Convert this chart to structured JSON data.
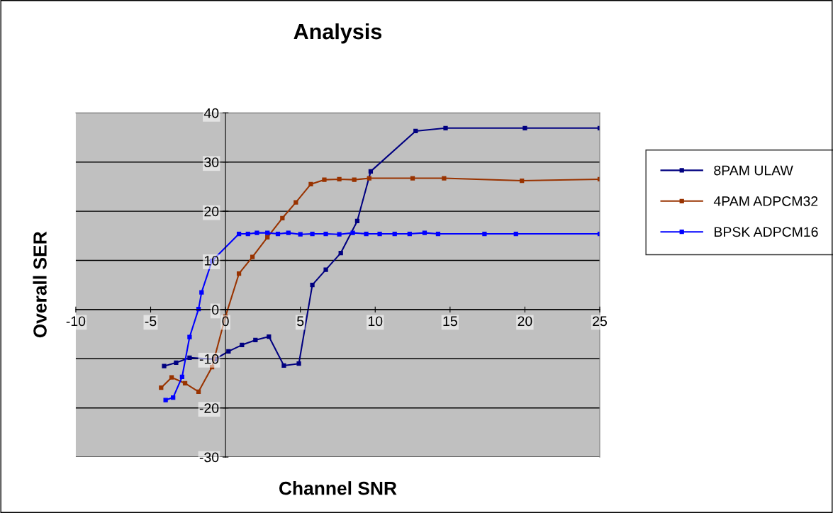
{
  "chart_data": {
    "type": "line",
    "title": "Analysis",
    "xlabel": "Channel SNR",
    "ylabel": "Overall SER",
    "xlim": [
      -10,
      25
    ],
    "xticks": [
      -10,
      -5,
      0,
      5,
      10,
      15,
      20,
      25
    ],
    "ylim": [
      -30,
      40
    ],
    "yticks": [
      -30,
      -20,
      -10,
      0,
      10,
      20,
      30,
      40
    ],
    "grid": "y",
    "legend": "right",
    "marker": "square",
    "line_style": "solid",
    "series": [
      {
        "name": "8PAM ULAW",
        "color": "#000080",
        "x": [
          -4.1,
          -3.3,
          -2.4,
          -0.7,
          0.2,
          1.1,
          2.0,
          2.9,
          3.9,
          4.9,
          5.8,
          6.7,
          7.7,
          8.8,
          9.7,
          12.7,
          14.7,
          20,
          25
        ],
        "values": [
          -11.5,
          -10.8,
          -9.8,
          -10.1,
          -8.5,
          -7.2,
          -6.2,
          -5.5,
          -11.4,
          -11,
          5,
          8.1,
          11.5,
          18,
          28.1,
          36.3,
          36.9,
          36.9,
          36.9
        ]
      },
      {
        "name": "4PAM ADPCM32",
        "color": "#993300",
        "x": [
          -4.3,
          -3.6,
          -2.7,
          -1.8,
          -0.9,
          0,
          0.9,
          1.8,
          2.8,
          3.8,
          4.7,
          5.7,
          6.6,
          7.6,
          8.6,
          9.6,
          12.5,
          14.6,
          19.8,
          25
        ],
        "values": [
          -15.9,
          -13.8,
          -15,
          -16.7,
          -11.7,
          -1.4,
          7.3,
          10.7,
          14.7,
          18.6,
          21.8,
          25.5,
          26.4,
          26.5,
          26.4,
          26.7,
          26.7,
          26.7,
          26.2,
          26.5
        ]
      },
      {
        "name": "BPSK ADPCM16",
        "color": "#0000ff",
        "x": [
          -4.0,
          -3.5,
          -2.9,
          -2.4,
          -1.8,
          -1.6,
          -0.9,
          0.9,
          1.5,
          2.1,
          2.8,
          3.5,
          4.2,
          5.0,
          5.8,
          6.7,
          7.6,
          8.5,
          9.4,
          10.3,
          11.3,
          12.3,
          13.3,
          14.2,
          17.3,
          19.4,
          25
        ],
        "values": [
          -18.4,
          -17.9,
          -13.7,
          -5.6,
          0.1,
          3.5,
          9.9,
          15.4,
          15.4,
          15.6,
          15.6,
          15.4,
          15.6,
          15.3,
          15.4,
          15.4,
          15.3,
          15.6,
          15.4,
          15.4,
          15.4,
          15.4,
          15.6,
          15.4,
          15.4,
          15.4,
          15.4
        ]
      }
    ]
  }
}
